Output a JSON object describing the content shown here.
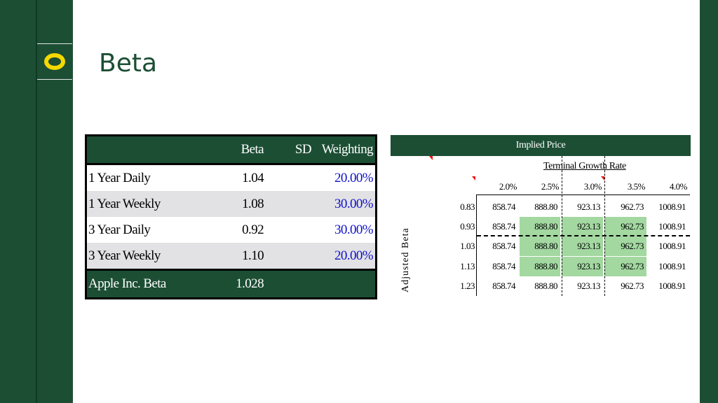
{
  "slide": {
    "title": "Beta"
  },
  "beta_table": {
    "headers": [
      "",
      "Beta",
      "SD",
      "Weighting"
    ],
    "rows": [
      {
        "label": "1 Year Daily",
        "beta": "1.04",
        "sd": "",
        "weighting": "20.00%"
      },
      {
        "label": "1 Year Weekly",
        "beta": "1.08",
        "sd": "",
        "weighting": "30.00%"
      },
      {
        "label": "3 Year Daily",
        "beta": "0.92",
        "sd": "",
        "weighting": "30.00%"
      },
      {
        "label": "3 Year Weekly",
        "beta": "1.10",
        "sd": "",
        "weighting": "20.00%"
      }
    ],
    "footer": {
      "label": "Apple Inc. Beta",
      "beta": "1.028"
    }
  },
  "sensitivity": {
    "title": "Implied Price",
    "col_title": "Terminal Growth Rate",
    "row_title": "Adjusted Beta",
    "growth_rates": [
      "2.0%",
      "2.5%",
      "3.0%",
      "3.5%",
      "4.0%"
    ],
    "betas": [
      "0.83",
      "0.93",
      "1.03",
      "1.13",
      "1.23"
    ],
    "values": [
      [
        "858.74",
        "888.80",
        "923.13",
        "962.73",
        "1008.91"
      ],
      [
        "858.74",
        "888.80",
        "923.13",
        "962.73",
        "1008.91"
      ],
      [
        "858.74",
        "888.80",
        "923.13",
        "962.73",
        "1008.91"
      ],
      [
        "858.74",
        "888.80",
        "923.13",
        "962.73",
        "1008.91"
      ],
      [
        "858.74",
        "888.80",
        "923.13",
        "962.73",
        "1008.91"
      ]
    ],
    "highlight_color": "#a3d8a1"
  },
  "colors": {
    "brand_green": "#1c4e34",
    "logo_yellow": "#f5d800",
    "weighting_blue": "#1010cc"
  }
}
